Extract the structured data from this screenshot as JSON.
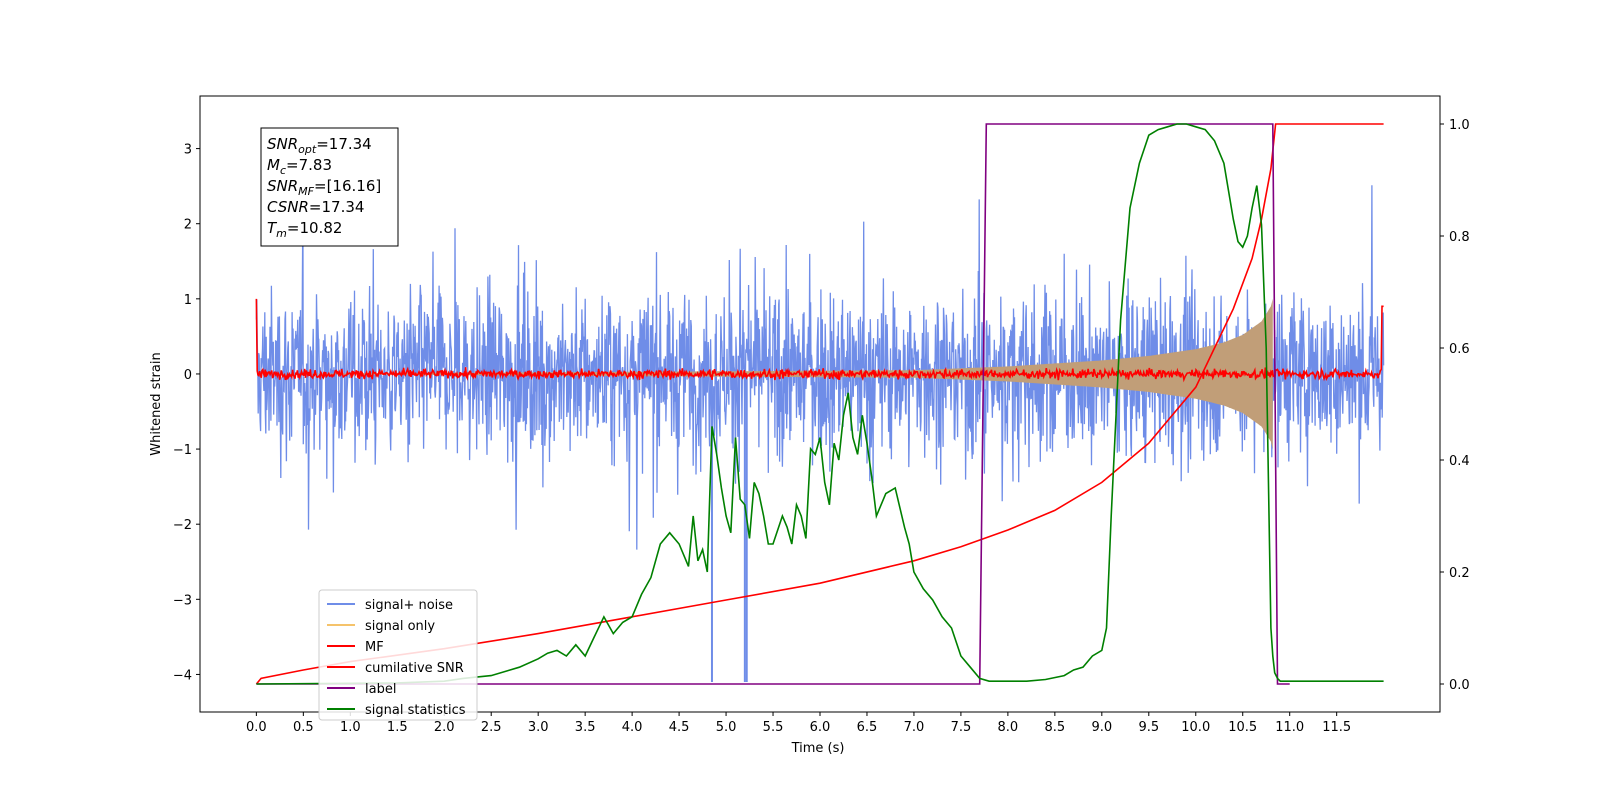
{
  "chart_data": {
    "type": "line",
    "xlabel": "Time (s)",
    "ylabel": "Whitened strain",
    "xlim": [
      -0.6,
      12.6
    ],
    "ylim": [
      -4.5,
      3.7
    ],
    "y2lim": [
      -0.05,
      1.05
    ],
    "x_ticks": [
      0.0,
      0.5,
      1.0,
      1.5,
      2.0,
      2.5,
      3.0,
      3.5,
      4.0,
      4.5,
      5.0,
      5.5,
      6.0,
      6.5,
      7.0,
      7.5,
      8.0,
      8.5,
      9.0,
      9.5,
      10.0,
      10.5,
      11.0,
      11.5
    ],
    "x_tick_labels": [
      "0.0",
      "0.5",
      "1.0",
      "1.5",
      "2.0",
      "2.5",
      "3.0",
      "3.5",
      "4.0",
      "4.5",
      "5.0",
      "5.5",
      "6.0",
      "6.5",
      "7.0",
      "7.5",
      "8.0",
      "8.5",
      "9.0",
      "9.5",
      "10.0",
      "10.5",
      "11.0",
      "11.5"
    ],
    "y_ticks": [
      -4,
      -3,
      -2,
      -1,
      0,
      1,
      2,
      3
    ],
    "y_tick_labels": [
      "−4",
      "−3",
      "−2",
      "−1",
      "0",
      "1",
      "2",
      "3"
    ],
    "y2_ticks": [
      0.0,
      0.2,
      0.4,
      0.6,
      0.8,
      1.0
    ],
    "y2_tick_labels": [
      "0.0",
      "0.2",
      "0.4",
      "0.6",
      "0.8",
      "1.0"
    ],
    "legend_position": "lower-left",
    "legend": [
      "signal+ noise",
      "signal only",
      "MF",
      "cumilative SNR",
      "label",
      "signal statistics"
    ],
    "annotation_lines": [
      {
        "sym": "SNR",
        "sub": "opt",
        "val": "=17.34"
      },
      {
        "sym": "M",
        "sub": "c",
        "val": "=7.83"
      },
      {
        "sym": "SNR",
        "sub": "MF",
        "val": "=[16.16]"
      },
      {
        "sym": "CSNR",
        "sub": "",
        "val": "=17.34"
      },
      {
        "sym": "T",
        "sub": "m",
        "val": "=10.82"
      }
    ],
    "colors": {
      "signal_noise": "#6f8de8",
      "signal_only": "#f5c36b",
      "signal_band": "#c19e78",
      "mf": "#ff0000",
      "cumulative_snr": "#ff0000",
      "label": "#800080",
      "signal_statistics": "#008000"
    },
    "series": [
      {
        "name": "signal+ noise",
        "axis": "left",
        "description_values": {
          "t_start": 0.0,
          "t_end": 12.0,
          "typical_amplitude": 1.4,
          "peak_max": 3.3,
          "peak_min": -4.1
        }
      },
      {
        "name": "signal only",
        "axis": "left",
        "envelope": {
          "x": [
            0.0,
            7.0,
            8.0,
            9.0,
            9.5,
            10.0,
            10.3,
            10.5,
            10.7,
            10.8,
            10.82
          ],
          "amp": [
            0.0,
            0.05,
            0.1,
            0.18,
            0.24,
            0.33,
            0.42,
            0.52,
            0.7,
            0.9,
            1.0
          ]
        }
      },
      {
        "name": "MF",
        "axis": "left",
        "description_values": {
          "baseline": 0.0,
          "noise_amplitude": 0.07,
          "edge_peak_start": 1.0,
          "edge_peak_end": 0.9
        }
      },
      {
        "name": "cumilative SNR",
        "axis": "right",
        "x": [
          0.0,
          0.05,
          0.5,
          1.0,
          2.0,
          3.0,
          4.0,
          5.0,
          6.0,
          7.0,
          7.5,
          8.0,
          8.5,
          9.0,
          9.5,
          10.0,
          10.2,
          10.4,
          10.6,
          10.7,
          10.8,
          10.85,
          12.0
        ],
        "values": [
          0.0,
          0.01,
          0.025,
          0.04,
          0.063,
          0.09,
          0.12,
          0.15,
          0.18,
          0.22,
          0.245,
          0.275,
          0.31,
          0.36,
          0.43,
          0.53,
          0.6,
          0.67,
          0.76,
          0.83,
          0.92,
          1.0,
          1.0
        ]
      },
      {
        "name": "label",
        "axis": "right",
        "x": [
          0.0,
          7.7,
          7.77,
          10.82,
          10.87,
          11.0
        ],
        "values": [
          0.0,
          0.0,
          1.0,
          1.0,
          0.0,
          0.0
        ]
      },
      {
        "name": "signal statistics",
        "axis": "right",
        "x": [
          0.0,
          1.5,
          2.0,
          2.2,
          2.5,
          2.7,
          2.8,
          3.0,
          3.1,
          3.2,
          3.3,
          3.4,
          3.5,
          3.6,
          3.7,
          3.8,
          3.9,
          4.0,
          4.1,
          4.2,
          4.3,
          4.4,
          4.5,
          4.55,
          4.6,
          4.65,
          4.7,
          4.75,
          4.8,
          4.85,
          4.9,
          4.95,
          5.0,
          5.05,
          5.1,
          5.15,
          5.2,
          5.25,
          5.3,
          5.35,
          5.4,
          5.45,
          5.5,
          5.6,
          5.65,
          5.7,
          5.75,
          5.8,
          5.85,
          5.9,
          5.95,
          6.0,
          6.05,
          6.1,
          6.15,
          6.2,
          6.25,
          6.3,
          6.35,
          6.4,
          6.45,
          6.5,
          6.55,
          6.6,
          6.7,
          6.8,
          6.9,
          6.95,
          7.0,
          7.1,
          7.2,
          7.3,
          7.4,
          7.5,
          7.6,
          7.7,
          7.8,
          8.0,
          8.2,
          8.4,
          8.6,
          8.7,
          8.8,
          8.9,
          9.0,
          9.05,
          9.1,
          9.2,
          9.3,
          9.4,
          9.5,
          9.6,
          9.7,
          9.8,
          9.9,
          10.0,
          10.1,
          10.2,
          10.3,
          10.35,
          10.4,
          10.45,
          10.5,
          10.55,
          10.6,
          10.65,
          10.7,
          10.75,
          10.8,
          10.82,
          10.84,
          10.87,
          10.9,
          11.0,
          11.5,
          12.0
        ],
        "values": [
          0.0,
          0.002,
          0.005,
          0.01,
          0.015,
          0.025,
          0.03,
          0.045,
          0.055,
          0.06,
          0.05,
          0.07,
          0.05,
          0.085,
          0.12,
          0.09,
          0.11,
          0.12,
          0.16,
          0.19,
          0.25,
          0.27,
          0.25,
          0.23,
          0.21,
          0.3,
          0.22,
          0.24,
          0.2,
          0.46,
          0.41,
          0.35,
          0.3,
          0.27,
          0.44,
          0.33,
          0.32,
          0.26,
          0.36,
          0.34,
          0.3,
          0.25,
          0.25,
          0.3,
          0.28,
          0.25,
          0.32,
          0.3,
          0.26,
          0.42,
          0.41,
          0.44,
          0.36,
          0.32,
          0.43,
          0.4,
          0.48,
          0.52,
          0.44,
          0.41,
          0.48,
          0.43,
          0.37,
          0.3,
          0.34,
          0.35,
          0.28,
          0.25,
          0.2,
          0.17,
          0.15,
          0.12,
          0.1,
          0.05,
          0.03,
          0.01,
          0.005,
          0.005,
          0.005,
          0.008,
          0.015,
          0.025,
          0.03,
          0.05,
          0.06,
          0.1,
          0.3,
          0.65,
          0.85,
          0.93,
          0.98,
          0.99,
          0.995,
          1.0,
          1.0,
          0.995,
          0.99,
          0.97,
          0.93,
          0.88,
          0.83,
          0.79,
          0.78,
          0.8,
          0.85,
          0.89,
          0.82,
          0.6,
          0.1,
          0.05,
          0.02,
          0.01,
          0.005,
          0.005,
          0.005,
          0.005
        ]
      }
    ]
  }
}
